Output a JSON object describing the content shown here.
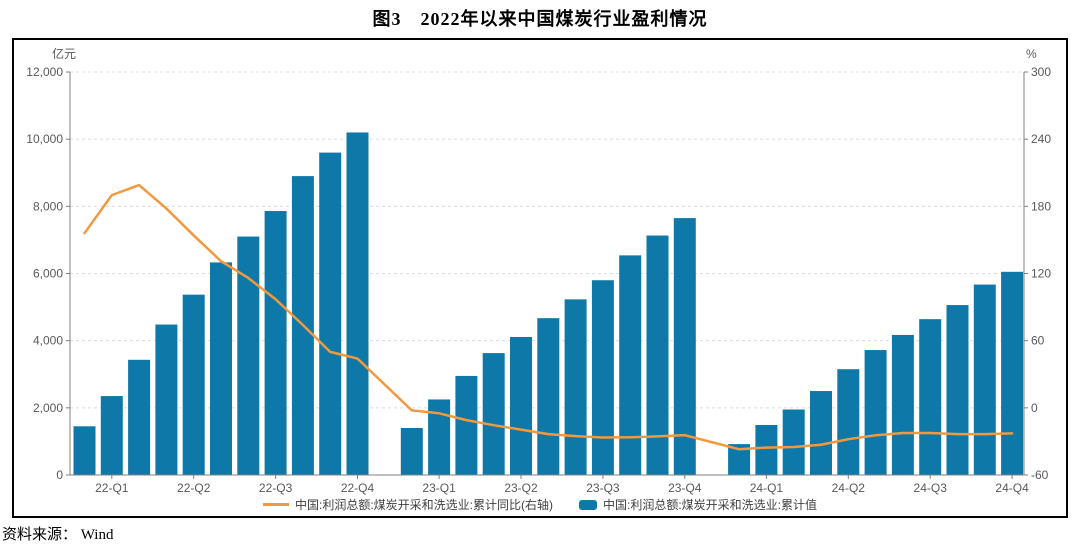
{
  "title": "图3　2022年以来中国煤炭行业盈利情况",
  "source": "资料来源： Wind",
  "legend": {
    "line_label": "中国:利润总额:煤炭开采和洗选业:累计同比(右轴)",
    "bar_label": "中国:利润总额:煤炭开采和洗选业:累计值"
  },
  "colors": {
    "bar": "#0E79A8",
    "line": "#F2993F",
    "axis": "#808080",
    "grid": "#DCDCDC",
    "tick_text": "#595959"
  },
  "chart_data": {
    "type": "bar+line",
    "months": [
      "2022-02",
      "2022-03",
      "2022-04",
      "2022-05",
      "2022-06",
      "2022-07",
      "2022-08",
      "2022-09",
      "2022-10",
      "2022-11",
      "2022-12",
      "2023-02",
      "2023-03",
      "2023-04",
      "2023-05",
      "2023-06",
      "2023-07",
      "2023-08",
      "2023-09",
      "2023-10",
      "2023-11",
      "2023-12",
      "2024-02",
      "2024-03",
      "2024-04",
      "2024-05",
      "2024-06",
      "2024-07",
      "2024-08",
      "2024-09",
      "2024-10",
      "2024-11",
      "2024-12"
    ],
    "series": [
      {
        "name": "中国:利润总额:煤炭开采和洗选业:累计值",
        "type": "bar",
        "axis": "left",
        "unit": "亿元",
        "values": [
          1450,
          2350,
          3430,
          4480,
          5370,
          6330,
          7100,
          7860,
          8900,
          9600,
          10200,
          1400,
          2250,
          2950,
          3630,
          4110,
          4670,
          5230,
          5800,
          6540,
          7130,
          7650,
          920,
          1490,
          1950,
          2500,
          3150,
          3720,
          4170,
          4640,
          5060,
          5670,
          6050
        ]
      },
      {
        "name": "中国:利润总额:煤炭开采和洗选业:累计同比(右轴)",
        "type": "line",
        "axis": "right",
        "unit": "%",
        "values": [
          156,
          190,
          199,
          178,
          154,
          131,
          116,
          97,
          74,
          50,
          44,
          -2.3,
          -4.9,
          -11,
          -15.5,
          -19.5,
          -23.5,
          -25.3,
          -26.5,
          -26.3,
          -25.5,
          -24.4,
          -37,
          -35.5,
          -35,
          -33,
          -28,
          -24.5,
          -22.5,
          -22.5,
          -23.5,
          -23.5,
          -22.8
        ]
      }
    ],
    "x_ticks": [
      {
        "label": "22-Q1",
        "month_index": 1
      },
      {
        "label": "22-Q2",
        "month_index": 4
      },
      {
        "label": "22-Q3",
        "month_index": 7
      },
      {
        "label": "22-Q4",
        "month_index": 10
      },
      {
        "label": "23-Q1",
        "month_index": 12
      },
      {
        "label": "23-Q2",
        "month_index": 15
      },
      {
        "label": "23-Q3",
        "month_index": 18
      },
      {
        "label": "23-Q4",
        "month_index": 21
      },
      {
        "label": "24-Q1",
        "month_index": 23
      },
      {
        "label": "24-Q2",
        "month_index": 26
      },
      {
        "label": "24-Q3",
        "month_index": 29
      },
      {
        "label": "24-Q4",
        "month_index": 32
      }
    ],
    "left_axis": {
      "unit": "亿元",
      "min": 0,
      "max": 12000,
      "step": 2000
    },
    "right_axis": {
      "unit": "%",
      "min": -60,
      "max": 300,
      "step": 60
    },
    "grid": "horizontal-dashed",
    "legend_position": "bottom-center"
  }
}
